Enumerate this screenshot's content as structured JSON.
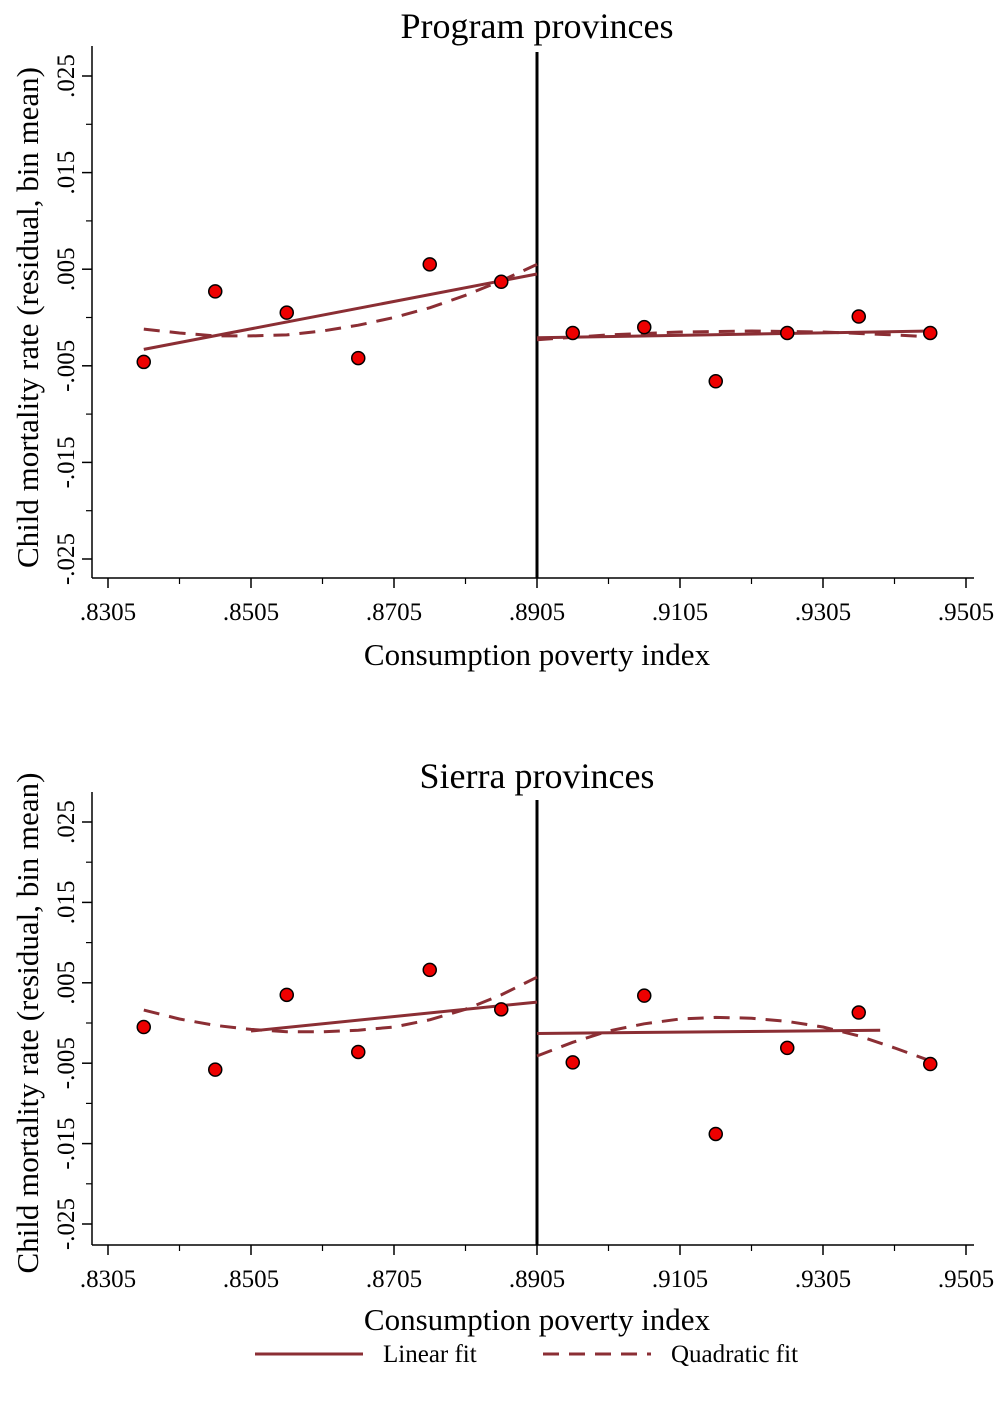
{
  "chart_data": [
    {
      "type": "scatter",
      "title": "Program provinces",
      "xlabel": "Consumption poverty index",
      "ylabel": "Child mortality rate (residual, bin mean)",
      "xlim": [
        0.8305,
        0.9505
      ],
      "ylim": [
        -0.025,
        0.025
      ],
      "xticks": [
        ".8305",
        ".8505",
        ".8705",
        ".8905",
        ".9105",
        ".9305",
        ".9505"
      ],
      "yticks": [
        "-.025",
        "-.015",
        "-.005",
        ".005",
        ".015",
        ".025"
      ],
      "cutoff": 0.8905,
      "points": {
        "x": [
          0.8355,
          0.8455,
          0.8555,
          0.8655,
          0.8755,
          0.8855,
          0.8955,
          0.9055,
          0.9155,
          0.9255,
          0.9355,
          0.9455
        ],
        "y": [
          -0.0046,
          0.0027,
          0.0005,
          -0.0042,
          0.0055,
          0.0037,
          -0.0016,
          -0.001,
          -0.0066,
          -0.0016,
          0.0001,
          -0.0016
        ]
      },
      "series": [
        {
          "name": "Linear fit",
          "style": "solid",
          "left": {
            "x": [
              0.8355,
              0.8905
            ],
            "y": [
              -0.0033,
              0.0045
            ]
          },
          "right": {
            "x": [
              0.8905,
              0.9455
            ],
            "y": [
              -0.0021,
              -0.0014
            ]
          }
        },
        {
          "name": "Quadratic fit",
          "style": "dashed",
          "left": {
            "x": [
              0.8355,
              0.8405,
              0.8455,
              0.8505,
              0.8555,
              0.8605,
              0.8655,
              0.8705,
              0.8755,
              0.8805,
              0.8855,
              0.8905
            ],
            "y": [
              -0.0012,
              -0.0016,
              -0.0019,
              -0.0019,
              -0.0018,
              -0.0014,
              -0.0008,
              0.0,
              0.001,
              0.0023,
              0.0038,
              0.0055
            ]
          },
          "right": {
            "x": [
              0.8905,
              0.9005,
              0.9105,
              0.9205,
              0.9305,
              0.9405,
              0.9455
            ],
            "y": [
              -0.0023,
              -0.0018,
              -0.0015,
              -0.0014,
              -0.0015,
              -0.0018,
              -0.002
            ]
          }
        }
      ],
      "colors": {
        "points": "#ee0000",
        "fit": "#8b2e34"
      }
    },
    {
      "type": "scatter",
      "title": "Sierra provinces",
      "xlabel": "Consumption poverty index",
      "ylabel": "Child mortality rate (residual, bin mean)",
      "xlim": [
        0.8305,
        0.9505
      ],
      "ylim": [
        -0.025,
        0.025
      ],
      "xticks": [
        ".8305",
        ".8505",
        ".8705",
        ".8905",
        ".9105",
        ".9305",
        ".9505"
      ],
      "yticks": [
        "-.025",
        "-.015",
        "-.005",
        ".005",
        ".015",
        ".025"
      ],
      "cutoff": 0.8905,
      "points": {
        "x": [
          0.8355,
          0.8455,
          0.8555,
          0.8655,
          0.8755,
          0.8855,
          0.8955,
          0.9055,
          0.9155,
          0.9255,
          0.9355,
          0.9455
        ],
        "y": [
          -0.0005,
          -0.0058,
          0.0035,
          -0.0036,
          0.0066,
          0.0017,
          -0.0049,
          0.0034,
          -0.0138,
          -0.0031,
          0.0013,
          -0.0051
        ]
      },
      "series": [
        {
          "name": "Linear fit",
          "style": "solid",
          "left": {
            "x": [
              0.8505,
              0.8905
            ],
            "y": [
              -0.001,
              0.0026
            ]
          },
          "right": {
            "x": [
              0.8905,
              0.9385
            ],
            "y": [
              -0.0013,
              -0.0009
            ]
          }
        },
        {
          "name": "Quadratic fit",
          "style": "dashed",
          "left": {
            "x": [
              0.8355,
              0.8405,
              0.8455,
              0.8505,
              0.8555,
              0.8605,
              0.8655,
              0.8705,
              0.8755,
              0.8805,
              0.8855,
              0.8905
            ],
            "y": [
              0.0016,
              0.0005,
              -0.0003,
              -0.0008,
              -0.0011,
              -0.0011,
              -0.0009,
              -0.0005,
              0.0004,
              0.0017,
              0.0035,
              0.0057
            ]
          },
          "right": {
            "x": [
              0.8905,
              0.8955,
              0.9005,
              0.9055,
              0.9105,
              0.9155,
              0.9205,
              0.9255,
              0.9305,
              0.9355,
              0.9405,
              0.9455
            ],
            "y": [
              -0.0041,
              -0.0024,
              -0.001,
              -0.0001,
              0.0005,
              0.0007,
              0.0006,
              0.0002,
              -0.0005,
              -0.0016,
              -0.0031,
              -0.0047
            ]
          }
        }
      ],
      "colors": {
        "points": "#ee0000",
        "fit": "#8b2e34"
      }
    }
  ],
  "legend": {
    "items": [
      {
        "label": "Linear fit",
        "style": "solid"
      },
      {
        "label": "Quadratic fit",
        "style": "dashed"
      }
    ]
  }
}
